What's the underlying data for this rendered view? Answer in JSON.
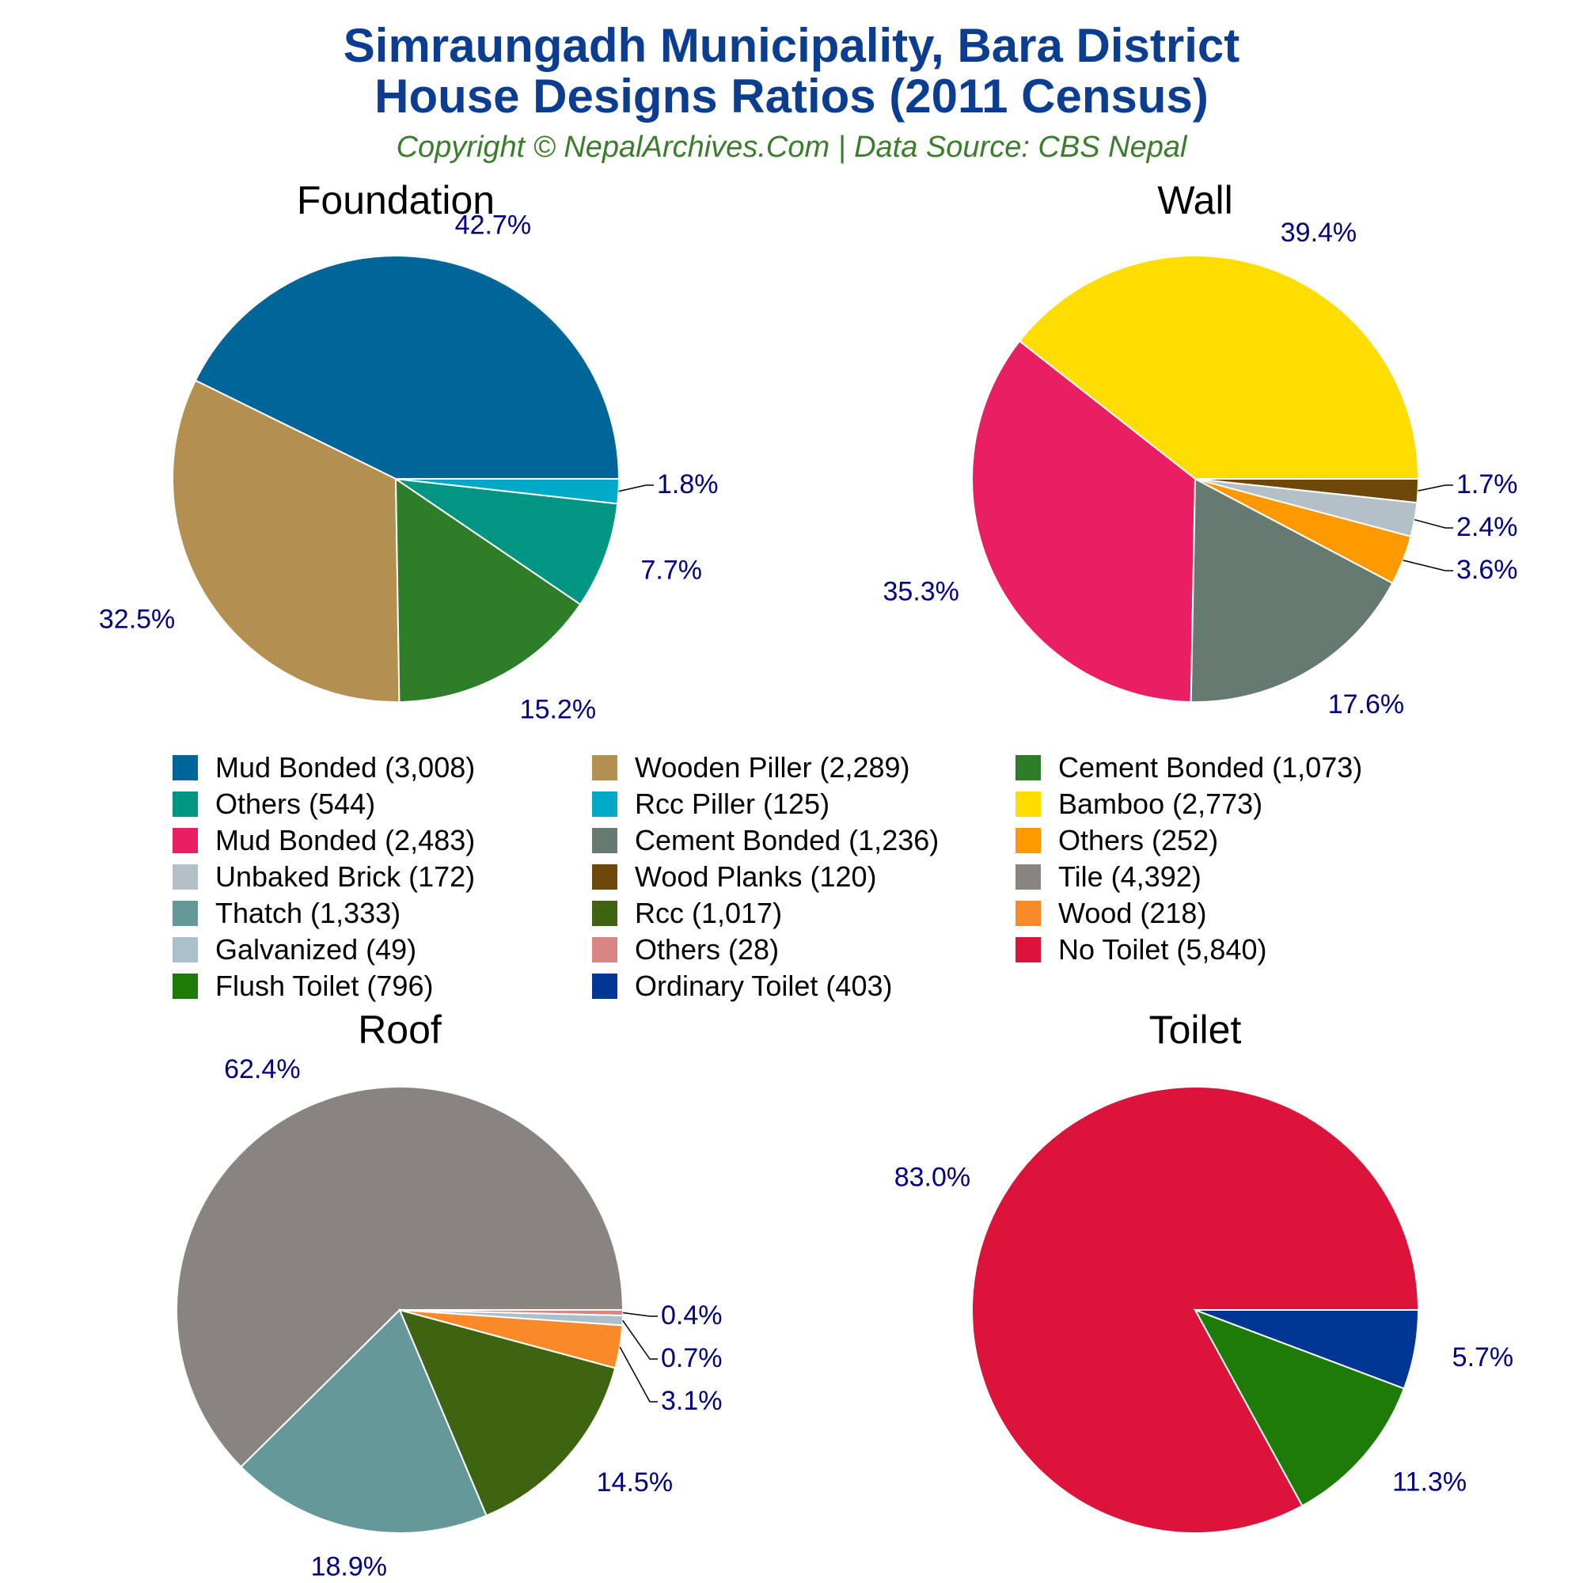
{
  "header": {
    "title_line1": "Simraungadh Municipality, Bara District",
    "title_line2": "House Designs Ratios (2011 Census)",
    "subtitle": "Copyright © NepalArchives.Com | Data Source: CBS Nepal"
  },
  "chart_data": [
    {
      "type": "pie",
      "title": "Foundation",
      "slices": [
        {
          "label": "Mud Bonded",
          "value": 3008,
          "pct": "42.7%",
          "color": "#006699"
        },
        {
          "label": "Wooden Piller",
          "value": 2289,
          "pct": "32.5%",
          "color": "#b38f50"
        },
        {
          "label": "Cement Bonded",
          "value": 1073,
          "pct": "15.2%",
          "color": "#2e7d28"
        },
        {
          "label": "Others",
          "value": 544,
          "pct": "7.7%",
          "color": "#009683"
        },
        {
          "label": "Rcc Piller",
          "value": 125,
          "pct": "1.8%",
          "color": "#00a9c7"
        }
      ]
    },
    {
      "type": "pie",
      "title": "Wall",
      "slices": [
        {
          "label": "Bamboo",
          "value": 2773,
          "pct": "39.4%",
          "color": "#ffdd00"
        },
        {
          "label": "Mud Bonded",
          "value": 2483,
          "pct": "35.3%",
          "color": "#e91e63"
        },
        {
          "label": "Cement Bonded",
          "value": 1236,
          "pct": "17.6%",
          "color": "#667a72"
        },
        {
          "label": "Others",
          "value": 252,
          "pct": "3.6%",
          "color": "#ff9900"
        },
        {
          "label": "Unbaked Brick",
          "value": 172,
          "pct": "2.4%",
          "color": "#b3c0c7"
        },
        {
          "label": "Wood Planks",
          "value": 120,
          "pct": "1.7%",
          "color": "#6e4709"
        }
      ]
    },
    {
      "type": "pie",
      "title": "Roof",
      "slices": [
        {
          "label": "Tile",
          "value": 4392,
          "pct": "62.4%",
          "color": "#8a8480"
        },
        {
          "label": "Thatch",
          "value": 1333,
          "pct": "18.9%",
          "color": "#659899"
        },
        {
          "label": "Rcc",
          "value": 1017,
          "pct": "14.5%",
          "color": "#3e6311"
        },
        {
          "label": "Wood",
          "value": 218,
          "pct": "3.1%",
          "color": "#fa8a28"
        },
        {
          "label": "Galvanized",
          "value": 49,
          "pct": "0.7%",
          "color": "#aabfc9"
        },
        {
          "label": "Others",
          "value": 28,
          "pct": "0.4%",
          "color": "#d98585"
        }
      ]
    },
    {
      "type": "pie",
      "title": "Toilet",
      "slices": [
        {
          "label": "No Toilet",
          "value": 5840,
          "pct": "83.0%",
          "color": "#dc143c"
        },
        {
          "label": "Flush Toilet",
          "value": 796,
          "pct": "11.3%",
          "color": "#1e7b07"
        },
        {
          "label": "Ordinary Toilet",
          "value": 403,
          "pct": "5.7%",
          "color": "#003694"
        }
      ]
    }
  ],
  "legend": {
    "items": [
      {
        "text": "Mud Bonded (3,008)",
        "color": "#006699"
      },
      {
        "text": "Wooden Piller (2,289)",
        "color": "#b38f50"
      },
      {
        "text": "Cement Bonded (1,073)",
        "color": "#2e7d28"
      },
      {
        "text": "Others (544)",
        "color": "#009683"
      },
      {
        "text": "Rcc Piller (125)",
        "color": "#00a9c7"
      },
      {
        "text": "Bamboo (2,773)",
        "color": "#ffdd00"
      },
      {
        "text": "Mud Bonded (2,483)",
        "color": "#e91e63"
      },
      {
        "text": "Cement Bonded (1,236)",
        "color": "#667a72"
      },
      {
        "text": "Others (252)",
        "color": "#ff9900"
      },
      {
        "text": "Unbaked Brick (172)",
        "color": "#b3c0c7"
      },
      {
        "text": "Wood Planks (120)",
        "color": "#6e4709"
      },
      {
        "text": "Tile (4,392)",
        "color": "#8a8480"
      },
      {
        "text": "Thatch (1,333)",
        "color": "#659899"
      },
      {
        "text": "Rcc (1,017)",
        "color": "#3e6311"
      },
      {
        "text": "Wood (218)",
        "color": "#fa8a28"
      },
      {
        "text": "Galvanized (49)",
        "color": "#aabfc9"
      },
      {
        "text": "Others (28)",
        "color": "#d98585"
      },
      {
        "text": "No Toilet (5,840)",
        "color": "#dc143c"
      },
      {
        "text": "Flush Toilet (796)",
        "color": "#1e7b07"
      },
      {
        "text": "Ordinary Toilet (403)",
        "color": "#003694"
      }
    ]
  }
}
